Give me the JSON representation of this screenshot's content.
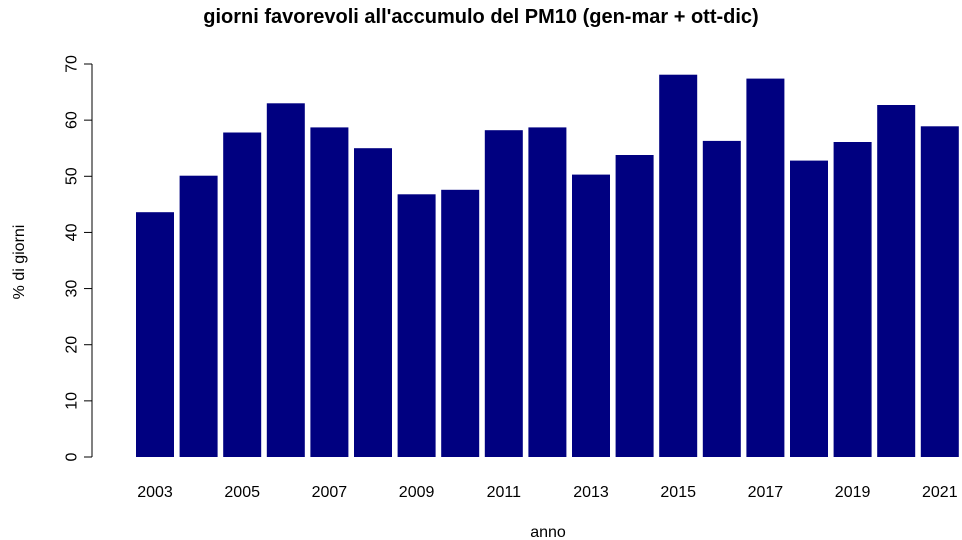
{
  "chart_data": {
    "type": "bar",
    "title": "giorni favorevoli all'accumulo del PM10 (gen-mar + ott-dic)",
    "xlabel": "anno",
    "ylabel": "% di giorni",
    "categories": [
      "2003",
      "2004",
      "2005",
      "2006",
      "2007",
      "2008",
      "2009",
      "2010",
      "2011",
      "2012",
      "2013",
      "2014",
      "2015",
      "2016",
      "2017",
      "2018",
      "2019",
      "2020",
      "2021"
    ],
    "values": [
      43.6,
      50.1,
      57.8,
      63.0,
      58.7,
      55.0,
      46.8,
      47.6,
      58.2,
      58.7,
      50.3,
      53.8,
      68.1,
      56.3,
      67.4,
      52.8,
      56.1,
      62.7,
      58.9
    ],
    "x_tick_labels": [
      "2003",
      "2005",
      "2007",
      "2009",
      "2011",
      "2013",
      "2015",
      "2017",
      "2019",
      "2021"
    ],
    "y_ticks": [
      0,
      10,
      20,
      30,
      40,
      50,
      60,
      70
    ],
    "ylim": [
      0,
      70
    ],
    "bar_color": "#000080",
    "grid": false,
    "legend": "none"
  }
}
